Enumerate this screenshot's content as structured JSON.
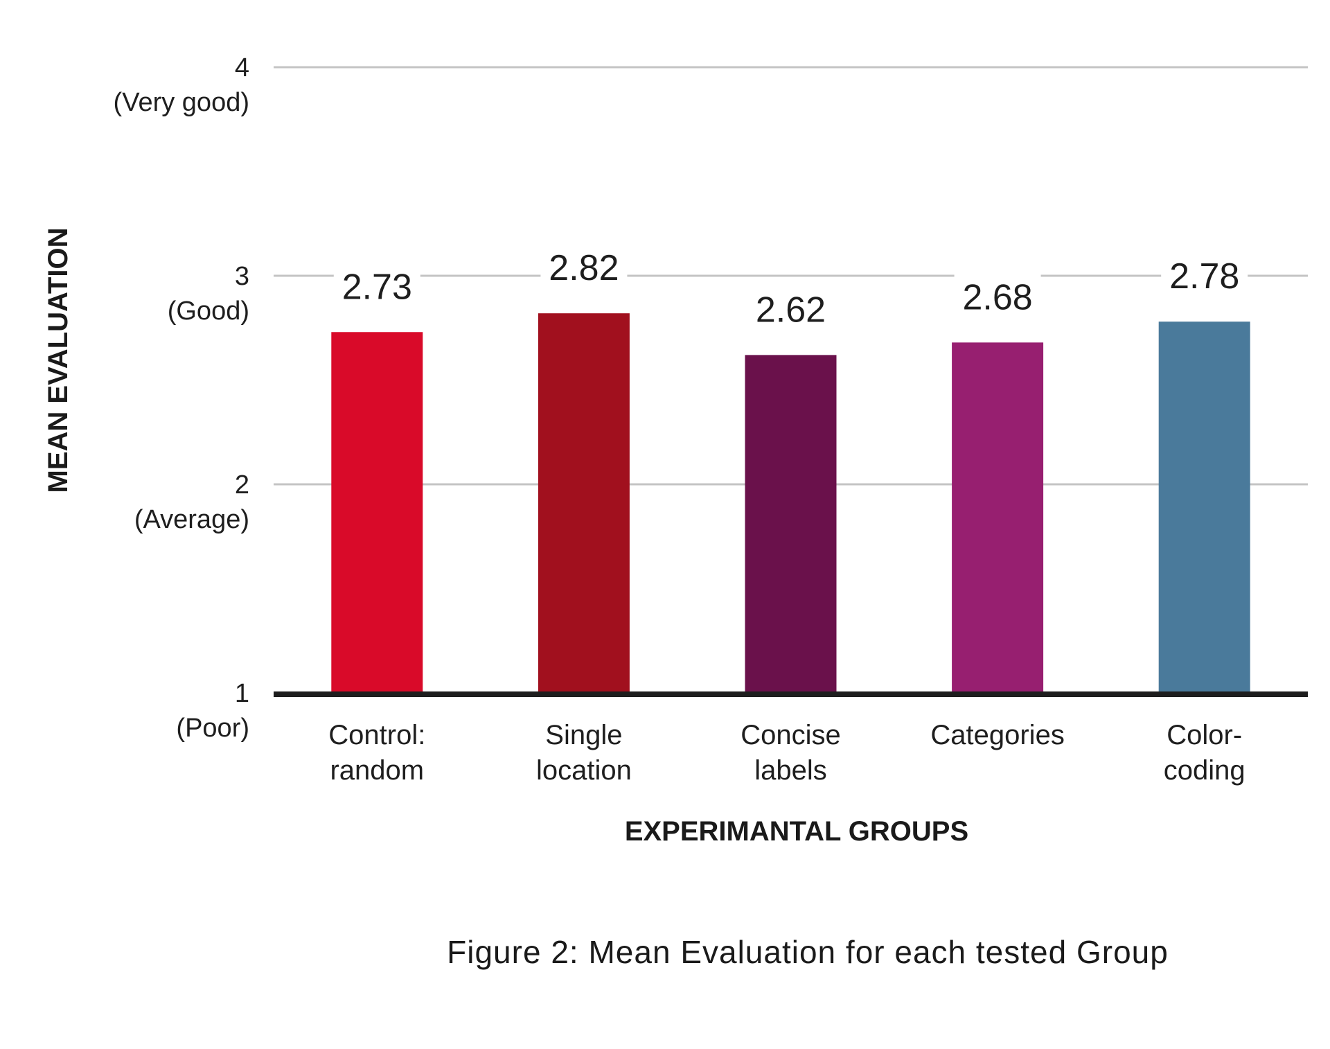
{
  "figure": {
    "caption": "Figure 2: Mean Evaluation for each tested Group"
  },
  "chart_data": {
    "type": "bar",
    "title": "",
    "xlabel": "EXPERIMANTAL GROUPS",
    "ylabel": "MEAN EVALUATION",
    "ylim": [
      1,
      4
    ],
    "grid": true,
    "legend": "none",
    "y_ticks": [
      {
        "value": 4,
        "label": "4",
        "desc": "(Very good)"
      },
      {
        "value": 3,
        "label": "3",
        "desc": "(Good)"
      },
      {
        "value": 2,
        "label": "2",
        "desc": "(Average)"
      },
      {
        "value": 1,
        "label": "1",
        "desc": "(Poor)"
      }
    ],
    "categories": [
      [
        "Control:",
        "random"
      ],
      [
        "Single",
        "location"
      ],
      [
        "Concise",
        "labels"
      ],
      [
        "Categories"
      ],
      [
        "Color-",
        "coding"
      ]
    ],
    "values": [
      2.73,
      2.82,
      2.62,
      2.68,
      2.78
    ],
    "value_labels": [
      "2.73",
      "2.82",
      "2.62",
      "2.68",
      "2.78"
    ],
    "colors": [
      "#d90a29",
      "#a1101e",
      "#6a114b",
      "#971f70",
      "#4a7a9b"
    ],
    "grid_color": "#c4c4c4",
    "baseline_color": "#1e1e1e"
  }
}
